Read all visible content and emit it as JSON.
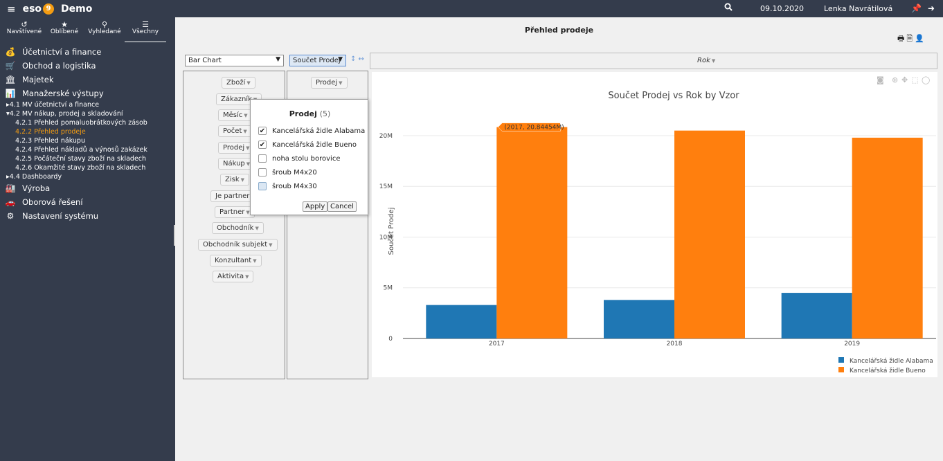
{
  "topbar": {
    "menu_icon": "hamburger-icon",
    "logo": "eso",
    "logo_mark": "9",
    "app": "Demo",
    "search_icon": "search-icon",
    "date": "09.10.2020",
    "user": "Lenka Navrátilová"
  },
  "sidebar": {
    "tabs": [
      {
        "label": "Navštívené",
        "icon": "history-icon"
      },
      {
        "label": "Oblíbené",
        "icon": "star-icon"
      },
      {
        "label": "Vyhledané",
        "icon": "search-icon"
      },
      {
        "label": "Všechny",
        "icon": "list-icon"
      }
    ],
    "main1": [
      "Účetnictví a finance",
      "Obchod a logistika",
      "Majetek",
      "Manažerské výstupy"
    ],
    "sub_41": "4.1  MV účetnictví a finance",
    "sub_42": "4.2  MV nákup, prodej a skladování",
    "children": [
      "4.2.1  Přehled pomaluobrátkových zásob",
      "4.2.2  Přehled prodeje",
      "4.2.3  Přehled nákupu",
      "4.2.4  Přehled nákladů a výnosů zakázek",
      "4.2.5  Počáteční stavy zboží na skladech",
      "4.2.6  Okamžité stavy zboží na skladech"
    ],
    "sub_44": "4.4  Dashboardy",
    "main2": [
      "Výroba",
      "Oborová řešení",
      "Nastavení systému"
    ]
  },
  "page": {
    "title": "Přehled prodeje"
  },
  "pivot": {
    "renderer": "Bar Chart",
    "aggregator": "Součet Prodej",
    "col_attr": "Rok",
    "val_attr": "Prodej",
    "row_attrs": [
      "Zboží",
      "Zákazník",
      "Měsíc",
      "Počet",
      "Prodej",
      "Nákup",
      "Zisk",
      "Je partnera",
      "Partner",
      "Obchodník",
      "Obchodník subjekt",
      "Konzultant",
      "Aktivita"
    ]
  },
  "popup": {
    "title": "Prodej",
    "count": "(5)",
    "items": [
      {
        "label": "Kancelářská židle Alabama",
        "checked": true
      },
      {
        "label": "Kancelářská židle Bueno",
        "checked": true
      },
      {
        "label": "noha stolu borovice",
        "checked": false
      },
      {
        "label": "šroub M4x20",
        "checked": false
      },
      {
        "label": "šroub M4x30",
        "checked": false
      }
    ],
    "apply": "Apply",
    "cancel": "Cancel"
  },
  "chart_data": {
    "type": "bar",
    "title": "Součet Prodej vs Rok by Vzor",
    "ylabel": "Součet Prodej",
    "xlabel": "",
    "categories": [
      "2017",
      "2018",
      "2019"
    ],
    "series": [
      {
        "name": "Kancelářská židle Alabama",
        "color": "#1f77b4",
        "values": [
          3300000,
          3800000,
          4500000
        ]
      },
      {
        "name": "Kancelářská židle Bueno",
        "color": "#ff7f0e",
        "values": [
          20844540,
          20500000,
          19800000
        ]
      }
    ],
    "ylim": [
      0,
      21500000
    ],
    "yticks": [
      0,
      5000000,
      10000000,
      15000000,
      20000000
    ],
    "ytick_labels": [
      "0",
      "5M",
      "10M",
      "15M",
      "20M"
    ],
    "grid": true,
    "legend": "bottom-right",
    "hover_label": "(2017, 20.84454M)"
  }
}
